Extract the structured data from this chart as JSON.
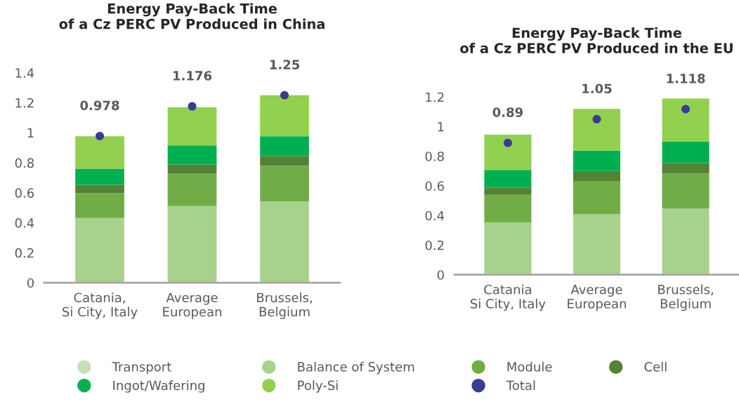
{
  "chart_data": [
    {
      "type": "bar",
      "stacked": true,
      "title": "Energy Pay-Back Time\nof a Cz PERC PV Produced in China",
      "categories": [
        "Catania,\nSi City, Italy",
        "Average\nEuropean",
        "Brussels,\nBelgium"
      ],
      "ylim": [
        0,
        1.4
      ],
      "yticks": [
        0,
        0.2,
        0.4,
        0.6,
        0.8,
        1,
        1.2,
        1.4
      ],
      "grid": false,
      "series": [
        {
          "color": "#c5e0b4",
          "values": [
            0,
            0,
            0
          ]
        },
        {
          "color": "#a9d18e",
          "values": [
            0.432,
            0.512,
            0.543
          ]
        },
        {
          "color": "#70ad47",
          "values": [
            0.165,
            0.218,
            0.237
          ]
        },
        {
          "color": "#548235",
          "values": [
            0.056,
            0.059,
            0.066
          ]
        },
        {
          "color": "#00b050",
          "values": [
            0.108,
            0.127,
            0.131
          ]
        },
        {
          "color": "#92d050",
          "values": [
            0.216,
            0.254,
            0.273
          ]
        },
        {
          "type": "scatter",
          "marker": "circle",
          "color": "#3a3a98",
          "x": [
            "Catania,\nSi City, Italy",
            "Average\nEuropean",
            "Brussels,\nBelgium"
          ],
          "values": [
            0.978,
            1.176,
            1.25
          ],
          "value_labels": [
            "0.978",
            "1.176",
            "1.25"
          ]
        }
      ]
    },
    {
      "type": "bar",
      "stacked": true,
      "title": "Energy Pay-Back Time\nof a Cz PERC PV Produced in the EU",
      "categories": [
        "Catania\nSi City, Italy",
        "Average\nEuropean",
        "Brussels,\nBelgium"
      ],
      "ylim": [
        0,
        1.2
      ],
      "yticks": [
        0,
        0.2,
        0.4,
        0.6,
        0.8,
        1,
        1.2
      ],
      "grid": false,
      "legend": "bottom",
      "series": [
        {
          "name": "Transport",
          "color": "#c5e0b4",
          "values": [
            0,
            0,
            0
          ]
        },
        {
          "name": "Balance of System",
          "color": "#a9d18e",
          "values": [
            0.352,
            0.408,
            0.446
          ]
        },
        {
          "name": "Module",
          "color": "#70ad47",
          "values": [
            0.187,
            0.225,
            0.238
          ]
        },
        {
          "name": "Cell",
          "color": "#548235",
          "values": [
            0.05,
            0.068,
            0.07
          ]
        },
        {
          "name": "Ingot/Wafering",
          "color": "#00b050",
          "values": [
            0.119,
            0.137,
            0.145
          ]
        },
        {
          "name": "Poly-Si",
          "color": "#92d050",
          "values": [
            0.238,
            0.281,
            0.29
          ]
        },
        {
          "name": "Total",
          "type": "scatter",
          "marker": "circle",
          "color": "#3a3a98",
          "x": [
            "Catania\nSi City, Italy",
            "Average\nEuropean",
            "Brussels,\nBelgium"
          ],
          "values": [
            0.89,
            1.05,
            1.118
          ],
          "value_labels": [
            "0.89",
            "1.05",
            "1.118"
          ]
        }
      ]
    }
  ]
}
